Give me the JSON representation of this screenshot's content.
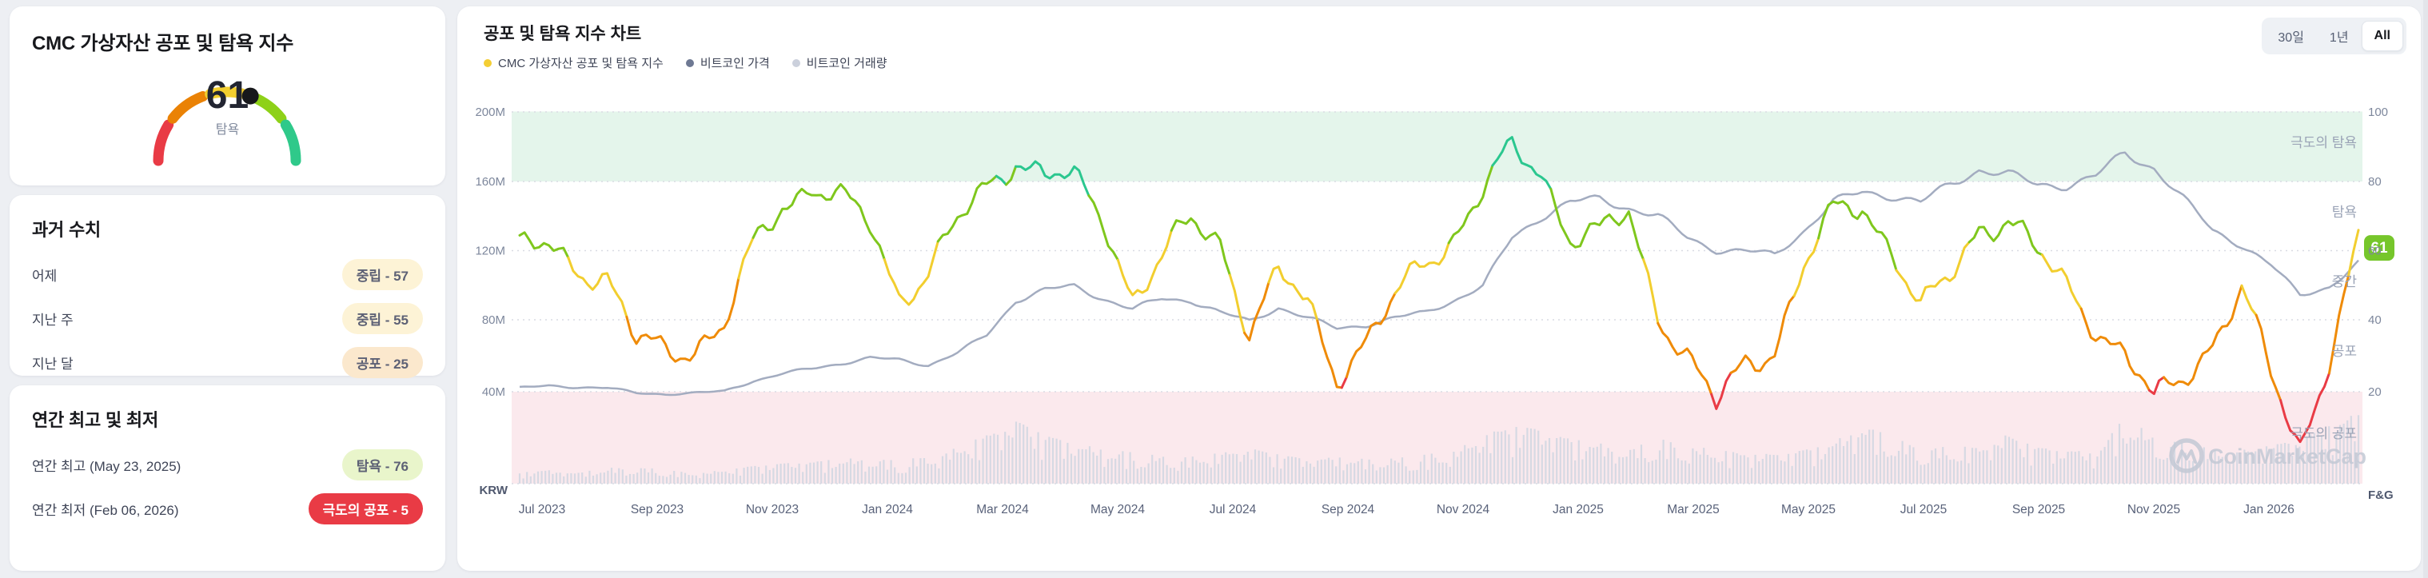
{
  "page": {
    "bg": "#edeff3"
  },
  "index_card": {
    "title": "CMC 가상자산 공포 및 탐욕 지수",
    "value": "61",
    "value_label": "탐욕",
    "gauge": {
      "segments": [
        {
          "name": "extreme-fear",
          "range": [
            0,
            17.5
          ],
          "color": "#e93b45"
        },
        {
          "name": "fear",
          "range": [
            21,
            38.5
          ],
          "color": "#ea8205"
        },
        {
          "name": "neutral",
          "range": [
            42,
            57
          ],
          "color": "#f2ce2f"
        },
        {
          "name": "greed",
          "range": [
            62,
            79
          ],
          "color": "#8ed118"
        },
        {
          "name": "extreme-greed",
          "range": [
            82.5,
            100
          ],
          "color": "#2fc98a"
        }
      ],
      "dot_value": 61,
      "dot_color": "#17181b"
    }
  },
  "history_card": {
    "title": "과거 수치",
    "rows": [
      {
        "label": "어제",
        "badge": "중립 - 57",
        "badge_bg": "#fdf3d6",
        "badge_color": "#5d6175"
      },
      {
        "label": "지난 주",
        "badge": "중립 - 55",
        "badge_bg": "#fdf3d6",
        "badge_color": "#5d6175"
      },
      {
        "label": "지난 달",
        "badge": "공포 - 25",
        "badge_bg": "#fbe8cd",
        "badge_color": "#5d6175"
      }
    ]
  },
  "yearly_card": {
    "title": "연간 최고 및 최저",
    "rows": [
      {
        "label": "연간 최고 (May 23, 2025)",
        "badge": "탐욕 - 76",
        "badge_bg": "#e9f5cb",
        "badge_color": "#5d6175"
      },
      {
        "label": "연간 최저 (Feb 06, 2026)",
        "badge": "극도의 공포 - 5",
        "badge_bg": "#e93b45",
        "badge_color": "#ffffff"
      }
    ]
  },
  "chart_card": {
    "title": "공포 및 탐욕 지수 차트",
    "legend": [
      {
        "label": "CMC 가상자산 공포 및 탐욕 지수",
        "color": "#f4ce34"
      },
      {
        "label": "비트코인 가격",
        "color": "#6e7993"
      },
      {
        "label": "비트코인 거래량",
        "color": "#cbd0dc"
      }
    ],
    "range_buttons": [
      {
        "label": "30일",
        "active": false
      },
      {
        "label": "1년",
        "active": false
      },
      {
        "label": "All",
        "active": true
      }
    ],
    "current_badge": {
      "value": "61",
      "bg": "#76c62b",
      "color": "#ffffff"
    },
    "watermark": "CoinMarketCap",
    "axes": {
      "left_labels": [
        "200M",
        "160M",
        "120M",
        "80M",
        "40M"
      ],
      "left_unit": "KRW",
      "right_labels": [
        "100",
        "80",
        "60",
        "40",
        "20"
      ],
      "right_unit": "F&G",
      "x_labels": [
        "Jul 2023",
        "Sep 2023",
        "Nov 2023",
        "Jan 2024",
        "Mar 2024",
        "May 2024",
        "Jul 2024",
        "Sep 2024",
        "Nov 2024",
        "Jan 2025",
        "Mar 2025",
        "May 2025",
        "Jul 2025",
        "Sep 2025",
        "Nov 2025",
        "Jan 2026"
      ]
    },
    "zone_labels": [
      "극도의 탐욕",
      "탐욕",
      "중간",
      "공포",
      "극도의 공포"
    ],
    "colors": {
      "band_greed_bg": "#e4f5eb",
      "band_fear_bg": "#fbe9ed",
      "grid": "#d9dce3",
      "fng_extreme_greed": "#2bc78f",
      "fng_greed": "#7fc71d",
      "fng_neutral": "#f2ce2f",
      "fng_fear": "#ef8b08",
      "fng_extreme_fear": "#e93b45",
      "btc_line": "#a3acc0",
      "volume_bar": "#d6d9e3",
      "axis_text": "#7d879c",
      "axis_unit_text": "#4f586e",
      "zone_text": "#9aa3b6",
      "x_text": "#59627a",
      "watermark": "#c3c9d5"
    }
  },
  "chart_data": {
    "type": "line",
    "title": "공포 및 탐욕 지수 차트",
    "x_start": "Jun 2023",
    "x_end": "Feb 2026",
    "x_step": "half-month",
    "x_tick_labels": [
      "Jul 2023",
      "Sep 2023",
      "Nov 2023",
      "Jan 2024",
      "Mar 2024",
      "May 2024",
      "Jul 2024",
      "Sep 2024",
      "Nov 2024",
      "Jan 2025",
      "Mar 2025",
      "May 2025",
      "Jul 2025",
      "Sep 2025",
      "Nov 2025",
      "Jan 2026"
    ],
    "y_right_label": "F&G",
    "y_right_range": [
      0,
      100
    ],
    "y_right_ticks": [
      100,
      80,
      60,
      40,
      20
    ],
    "y_left_label": "KRW",
    "y_left_range_millions": [
      0,
      200
    ],
    "y_left_ticks_millions": [
      200,
      160,
      120,
      80,
      40
    ],
    "zones": [
      {
        "label": "극도의 탐욕",
        "range": [
          80,
          100
        ]
      },
      {
        "label": "탐욕",
        "range": [
          60,
          80
        ]
      },
      {
        "label": "중간",
        "range": [
          40,
          60
        ]
      },
      {
        "label": "공포",
        "range": [
          20,
          40
        ]
      },
      {
        "label": "극도의 공포",
        "range": [
          0,
          20
        ]
      }
    ],
    "series": [
      {
        "name": "CMC 가상자산 공포 및 탐욕 지수",
        "axis": "right",
        "values": [
          60,
          61,
          57,
          52,
          33,
          32,
          34,
          38,
          60,
          74,
          80,
          74,
          67,
          48,
          55,
          67,
          78,
          88,
          82,
          79,
          70,
          48,
          57,
          68,
          64,
          38,
          52,
          45,
          26,
          34,
          45,
          58,
          65,
          77,
          88,
          84,
          65,
          64,
          70,
          44,
          30,
          15,
          28,
          34,
          55,
          70,
          74,
          62,
          42,
          52,
          68,
          70,
          58,
          50,
          40,
          30,
          16,
          25,
          35,
          48,
          24,
          5,
          30,
          61
        ]
      },
      {
        "name": "비트코인 가격 (백만 KRW)",
        "axis": "left",
        "values": [
          42,
          43,
          42.5,
          42,
          39,
          38.5,
          39,
          40,
          46,
          50,
          53,
          56,
          59,
          58,
          55,
          62,
          72,
          92,
          98,
          100,
          93,
          87,
          93,
          92,
          85,
          80,
          88,
          82,
          76,
          78,
          82,
          85,
          92,
          100,
          128,
          140,
          148,
          150,
          145,
          140,
          128,
          121,
          120,
          118,
          132,
          148,
          154,
          152,
          148,
          158,
          167,
          164,
          158,
          158,
          163,
          176,
          168,
          150,
          132,
          124,
          112,
          95,
          100,
          113
        ]
      },
      {
        "name": "비트코인 거래량 (상대값)",
        "axis": "left",
        "values": [
          0.05,
          0.06,
          0.05,
          0.07,
          0.08,
          0.06,
          0.05,
          0.06,
          0.08,
          0.09,
          0.1,
          0.11,
          0.12,
          0.1,
          0.13,
          0.16,
          0.22,
          0.28,
          0.22,
          0.18,
          0.16,
          0.14,
          0.13,
          0.12,
          0.14,
          0.16,
          0.13,
          0.11,
          0.12,
          0.11,
          0.12,
          0.13,
          0.15,
          0.22,
          0.26,
          0.24,
          0.2,
          0.18,
          0.16,
          0.2,
          0.18,
          0.15,
          0.14,
          0.13,
          0.15,
          0.18,
          0.28,
          0.2,
          0.18,
          0.16,
          0.17,
          0.22,
          0.16,
          0.15,
          0.14,
          0.3,
          0.22,
          0.18,
          0.16,
          0.15,
          0.17,
          0.2,
          0.26,
          0.32
        ]
      }
    ],
    "current_value": 61,
    "fng_color_thresholds": {
      "extreme_fear_below": 22,
      "fear_below": 45,
      "neutral_below": 60,
      "greed_below": 80
    }
  }
}
